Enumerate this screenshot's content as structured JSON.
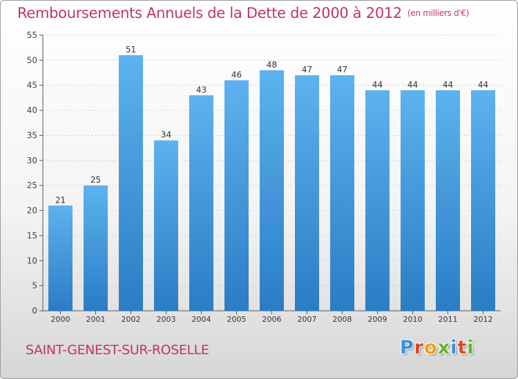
{
  "colors": {
    "title": "#c0336c",
    "bar": "#4a9fdf",
    "bar_light": "#5db2ef",
    "bar_dark": "#2a7dc4",
    "axis": "#555555",
    "grid": "#cfcfcf"
  },
  "brand": {
    "letters": [
      {
        "char": "P",
        "color": "#3a8fd8"
      },
      {
        "char": "r",
        "color": "#e0462a"
      },
      {
        "char": "o",
        "color": "#f0a019"
      },
      {
        "char": "x",
        "color": "#66b22e"
      },
      {
        "char": "i",
        "color": "#3a8fd8"
      },
      {
        "char": "t",
        "color": "#e0462a"
      },
      {
        "char": "i",
        "color": "#66b22e"
      }
    ]
  },
  "footer": {
    "commune": "SAINT-GENEST-SUR-ROSELLE"
  },
  "chart_data": {
    "type": "bar",
    "title": "Remboursements Annuels de la Dette de 2000 à 2012",
    "subtitle": "(en milliers d'€)",
    "xlabel": "",
    "ylabel": "",
    "ylim": [
      0,
      55
    ],
    "yticks": [
      "0",
      "5",
      "10",
      "15",
      "20",
      "25",
      "30",
      "35",
      "40",
      "45",
      "50",
      "55"
    ],
    "grid": true,
    "categories": [
      "2000",
      "2001",
      "2002",
      "2003",
      "2004",
      "2005",
      "2006",
      "2007",
      "2008",
      "2009",
      "2010",
      "2011",
      "2012"
    ],
    "values": [
      21,
      25,
      51,
      34,
      43,
      46,
      48,
      47,
      47,
      44,
      44,
      44,
      44
    ],
    "data_labels": [
      "21",
      "25",
      "51",
      "34",
      "43",
      "46",
      "48",
      "47",
      "47",
      "44",
      "44",
      "44",
      "44"
    ]
  }
}
